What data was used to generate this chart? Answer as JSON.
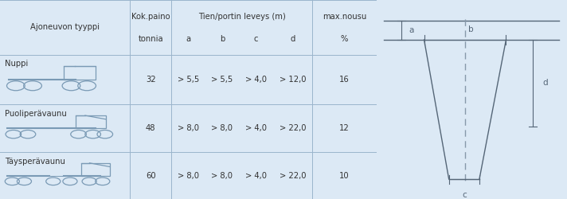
{
  "bg_color": "#dce9f5",
  "text_color": "#333333",
  "line_color": "#9ab5cc",
  "diagram_line_color": "#556677",
  "dashed_line_color": "#8899aa",
  "header1": "Ajoneuvon tyyppi",
  "header2_line1": "Kok.paino",
  "header2_line2": "tonnia",
  "header3": "Tien/portin leveys (m)",
  "header3_subs": [
    "a",
    "b",
    "c",
    "d"
  ],
  "header4_line1": "max.nousu",
  "header4_line2": "%",
  "rows": [
    {
      "name": "Nuppi",
      "weight": "32",
      "a": "> 5,5",
      "b": "> 5,5",
      "c": "> 4,0",
      "d": "> 12,0",
      "max": "16"
    },
    {
      "name": "Puoliperävaunu",
      "weight": "48",
      "a": "> 8,0",
      "b": "> 8,0",
      "c": "> 4,0",
      "d": "> 22,0",
      "max": "12"
    },
    {
      "name": "Täysperävaunu",
      "weight": "60",
      "a": "> 8,0",
      "b": "> 8,0",
      "c": "> 4,0",
      "d": "> 22,0",
      "max": "10"
    }
  ],
  "truck_color": "#7a9ab5",
  "fig_width": 7.12,
  "fig_height": 2.5,
  "dpi": 100
}
